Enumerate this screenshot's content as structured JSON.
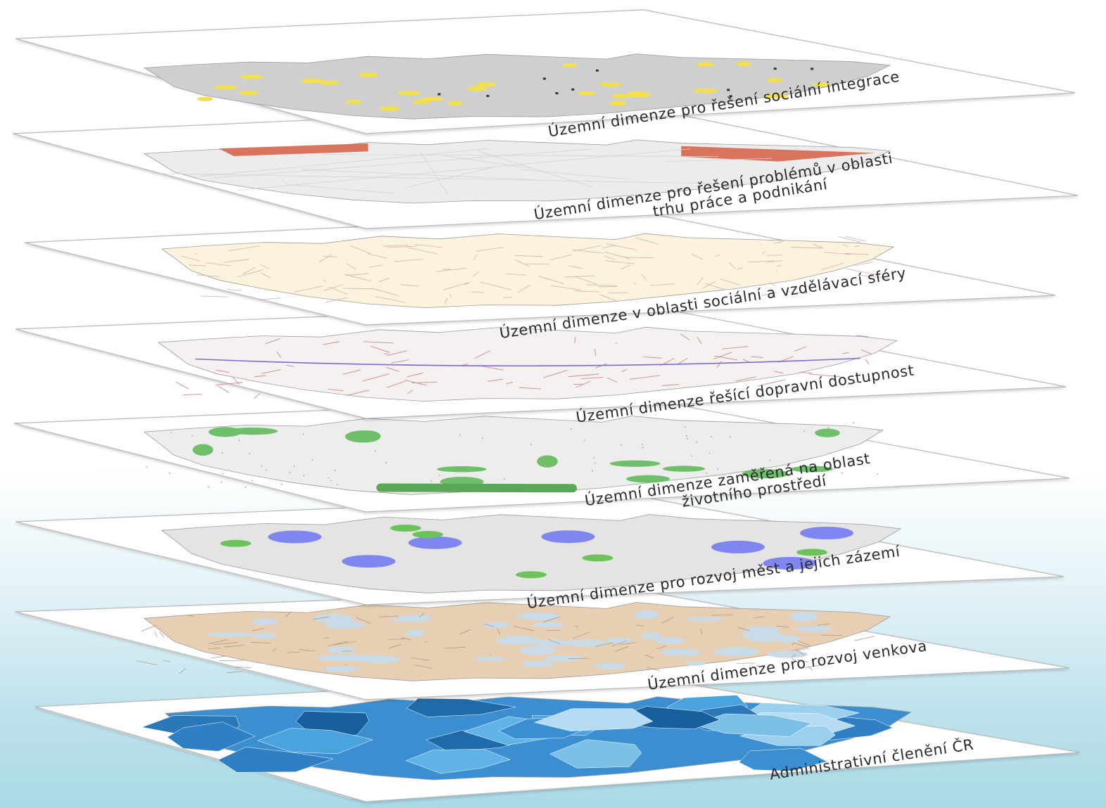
{
  "title": "",
  "colors": {
    "background_top": "#ffffff",
    "background_bottom": "#a9d9e6",
    "panel_fill": "#ffffff",
    "panel_stroke": "#b8b8b8"
  },
  "layers": [
    {
      "id": "social-integration",
      "caption": [
        "Územní dimenze pro řešení sociální integrace"
      ],
      "map_fill": "#cfcfcf",
      "highlight_color": "#f4e04d",
      "icon": "yellow-dots-map"
    },
    {
      "id": "labour-market",
      "caption": [
        "Územní dimenze pro řešení problémů v oblasti",
        "trhu práce a podnikání"
      ],
      "map_fill": "#ececec",
      "highlight_color": "#d9735c",
      "icon": "red-regions-map"
    },
    {
      "id": "social-education",
      "caption": [
        "Územní dimenze v oblasti sociální a vzdělávací sféry"
      ],
      "map_fill": "#fbf3dc",
      "highlight_color": "#d9b6b6",
      "icon": "municipal-boundaries-map"
    },
    {
      "id": "transport",
      "caption": [
        "Územní dimenze řešící dopravní dostupnost"
      ],
      "map_fill": "#f6f1f1",
      "highlight_color": "#c98a8a",
      "icon": "transport-network-map"
    },
    {
      "id": "environment",
      "caption": [
        "Územní dimenze zaměřená na oblast",
        "životního prostředí"
      ],
      "map_fill": "#ededed",
      "highlight_color": "#6fbf6a",
      "icon": "protected-areas-map"
    },
    {
      "id": "cities",
      "caption": [
        "Územní dimenze pro rozvoj měst a jejich zázemí"
      ],
      "map_fill": "#e4e4e4",
      "highlight_color": "#7f86ef",
      "icon": "city-regions-map"
    },
    {
      "id": "rural",
      "caption": [
        "Územní dimenze pro rozvoj venkova"
      ],
      "map_fill": "#e8cfb3",
      "highlight_color": "#c9dbe6",
      "icon": "rural-areas-map"
    },
    {
      "id": "administrative",
      "caption": [
        "Administrativní členění ČR"
      ],
      "map_fill": "#3b8fd0",
      "highlight_color": "#5fb3e6",
      "icon": "administrative-districts-map"
    }
  ]
}
